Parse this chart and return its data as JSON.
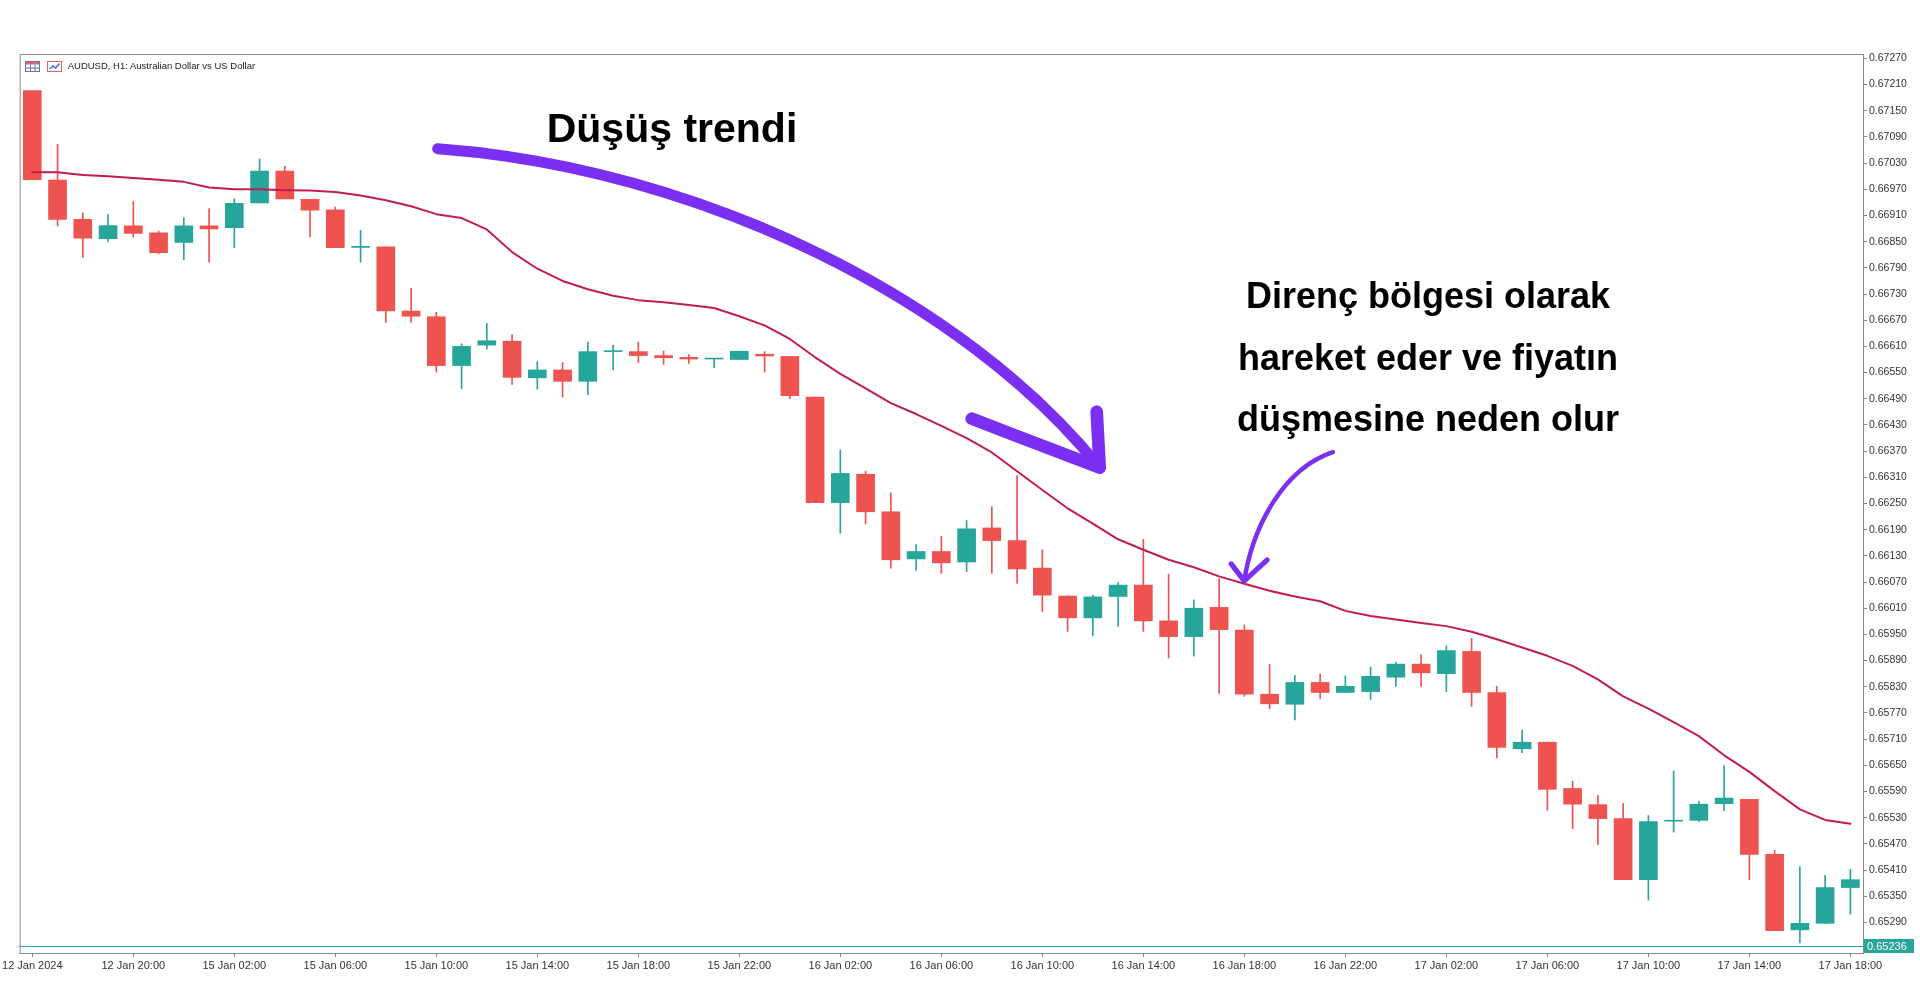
{
  "chart_data": {
    "type": "candlestick",
    "title": "AUDUSD, H1: Australian Dollar vs US Dollar",
    "categories": [
      "12 Jan 2024",
      null,
      null,
      null,
      "12 Jan 20:00",
      null,
      null,
      null,
      "15 Jan 02:00",
      null,
      null,
      null,
      "15 Jan 06:00",
      null,
      null,
      null,
      "15 Jan 10:00",
      null,
      null,
      null,
      "15 Jan 14:00",
      null,
      null,
      null,
      "15 Jan 18:00",
      null,
      null,
      null,
      "15 Jan 22:00",
      null,
      null,
      null,
      "16 Jan 02:00",
      null,
      null,
      null,
      "16 Jan 06:00",
      null,
      null,
      null,
      "16 Jan 10:00",
      null,
      null,
      null,
      "16 Jan 14:00",
      null,
      null,
      null,
      "16 Jan 18:00",
      null,
      null,
      null,
      "16 Jan 22:00",
      null,
      null,
      null,
      "17 Jan 02:00",
      null,
      null,
      null,
      "17 Jan 06:00",
      null,
      null,
      null,
      "17 Jan 10:00",
      null,
      null,
      null,
      "17 Jan 14:00",
      null,
      null,
      null,
      "17 Jan 18:00"
    ],
    "ohlc": [
      [
        0.67196,
        0.67196,
        0.66992,
        0.66992
      ],
      [
        0.66991,
        0.67073,
        0.66886,
        0.66901
      ],
      [
        0.66901,
        0.66916,
        0.66814,
        0.66858
      ],
      [
        0.66857,
        0.66912,
        0.6685,
        0.66887
      ],
      [
        0.66886,
        0.66942,
        0.6686,
        0.66869
      ],
      [
        0.6687,
        0.66874,
        0.66822,
        0.66825
      ],
      [
        0.66848,
        0.66905,
        0.66809,
        0.66886
      ],
      [
        0.66886,
        0.66926,
        0.66803,
        0.66879
      ],
      [
        0.66882,
        0.66948,
        0.66836,
        0.66938
      ],
      [
        0.66939,
        0.67039,
        0.66939,
        0.67012
      ],
      [
        0.67012,
        0.67023,
        0.66948,
        0.66948
      ],
      [
        0.66947,
        0.66947,
        0.66861,
        0.66922
      ],
      [
        0.66923,
        0.66929,
        0.66836,
        0.66836
      ],
      [
        0.66837,
        0.66876,
        0.66803,
        0.66837
      ],
      [
        0.66838,
        0.66838,
        0.66665,
        0.66691
      ],
      [
        0.66691,
        0.66743,
        0.66665,
        0.66679
      ],
      [
        0.66678,
        0.66688,
        0.66551,
        0.66566
      ],
      [
        0.66566,
        0.66616,
        0.66513,
        0.6661
      ],
      [
        0.66613,
        0.66663,
        0.66604,
        0.66623
      ],
      [
        0.66622,
        0.66637,
        0.66523,
        0.66539
      ],
      [
        0.66538,
        0.66575,
        0.66512,
        0.66556
      ],
      [
        0.66556,
        0.66573,
        0.66494,
        0.6653
      ],
      [
        0.6653,
        0.6662,
        0.66499,
        0.66598
      ],
      [
        0.66598,
        0.66613,
        0.66556,
        0.66598
      ],
      [
        0.66598,
        0.6662,
        0.66573,
        0.66589
      ],
      [
        0.66589,
        0.66599,
        0.66569,
        0.66584
      ],
      [
        0.66585,
        0.66591,
        0.66571,
        0.66581
      ],
      [
        0.66581,
        0.66581,
        0.66561,
        0.66581
      ],
      [
        0.6658,
        0.66599,
        0.6658,
        0.66599
      ],
      [
        0.66592,
        0.66598,
        0.66551,
        0.66588
      ],
      [
        0.66587,
        0.66587,
        0.6649,
        0.66497
      ],
      [
        0.66494,
        0.66494,
        0.66252,
        0.66252
      ],
      [
        0.66252,
        0.66373,
        0.66182,
        0.66319
      ],
      [
        0.66317,
        0.66324,
        0.66203,
        0.66231
      ],
      [
        0.66231,
        0.66274,
        0.66102,
        0.66121
      ],
      [
        0.66123,
        0.66156,
        0.66097,
        0.6614
      ],
      [
        0.6614,
        0.66175,
        0.6609,
        0.66114
      ],
      [
        0.66116,
        0.66211,
        0.66094,
        0.66192
      ],
      [
        0.66194,
        0.66243,
        0.6609,
        0.66165
      ],
      [
        0.66165,
        0.66314,
        0.66067,
        0.661
      ],
      [
        0.66102,
        0.66144,
        0.66002,
        0.6604
      ],
      [
        0.66038,
        0.66038,
        0.65957,
        0.65988
      ],
      [
        0.65988,
        0.6604,
        0.65947,
        0.66036
      ],
      [
        0.66037,
        0.66069,
        0.65969,
        0.66063
      ],
      [
        0.66063,
        0.66168,
        0.65957,
        0.65981
      ],
      [
        0.65981,
        0.66088,
        0.65896,
        0.65945
      ],
      [
        0.65945,
        0.66029,
        0.659,
        0.6601
      ],
      [
        0.66012,
        0.66078,
        0.65815,
        0.65961
      ],
      [
        0.6596,
        0.65972,
        0.65808,
        0.65813
      ],
      [
        0.65813,
        0.65881,
        0.6578,
        0.65791
      ],
      [
        0.6579,
        0.65856,
        0.65754,
        0.6584
      ],
      [
        0.6584,
        0.65859,
        0.65803,
        0.65817
      ],
      [
        0.65817,
        0.65855,
        0.65817,
        0.65831
      ],
      [
        0.65819,
        0.65875,
        0.65801,
        0.65854
      ],
      [
        0.65852,
        0.65886,
        0.65831,
        0.65882
      ],
      [
        0.65882,
        0.65903,
        0.65831,
        0.65862
      ],
      [
        0.6586,
        0.65924,
        0.65819,
        0.65913
      ],
      [
        0.65911,
        0.65941,
        0.65785,
        0.65817
      ],
      [
        0.65817,
        0.65831,
        0.65667,
        0.65691
      ],
      [
        0.65688,
        0.65731,
        0.65679,
        0.65703
      ],
      [
        0.65703,
        0.65703,
        0.65547,
        0.65595
      ],
      [
        0.65597,
        0.65614,
        0.65505,
        0.65561
      ],
      [
        0.6556,
        0.65581,
        0.65469,
        0.65528
      ],
      [
        0.65528,
        0.65563,
        0.65388,
        0.65388
      ],
      [
        0.65388,
        0.65535,
        0.65341,
        0.65521
      ],
      [
        0.65522,
        0.65637,
        0.65497,
        0.65522
      ],
      [
        0.65524,
        0.65567,
        0.65521,
        0.65561
      ],
      [
        0.65562,
        0.65649,
        0.65546,
        0.65575
      ],
      [
        0.65572,
        0.65572,
        0.65388,
        0.65446
      ],
      [
        0.65446,
        0.65455,
        0.65271,
        0.65271
      ],
      [
        0.65273,
        0.65418,
        0.65243,
        0.65288
      ],
      [
        0.65288,
        0.65398,
        0.65288,
        0.6537
      ],
      [
        0.6537,
        0.65412,
        0.65309,
        0.65388
      ]
    ],
    "colors": [
      "#ef5350",
      "#ef5350",
      "#ef5350",
      "#26a69a",
      "#ef5350",
      "#ef5350",
      "#26a69a",
      "#ef5350",
      "#26a69a",
      "#26a69a",
      "#ef5350",
      "#ef5350",
      "#ef5350",
      "#26a69a",
      "#ef5350",
      "#ef5350",
      "#ef5350",
      "#26a69a",
      "#26a69a",
      "#ef5350",
      "#26a69a",
      "#ef5350",
      "#26a69a",
      "#26a69a",
      "#ef5350",
      "#ef5350",
      "#ef5350",
      "#26a69a",
      "#26a69a",
      "#ef5350",
      "#ef5350",
      "#ef5350",
      "#26a69a",
      "#ef5350",
      "#ef5350",
      "#26a69a",
      "#ef5350",
      "#26a69a",
      "#ef5350",
      "#ef5350",
      "#ef5350",
      "#ef5350",
      "#26a69a",
      "#26a69a",
      "#ef5350",
      "#ef5350",
      "#26a69a",
      "#ef5350",
      "#ef5350",
      "#ef5350",
      "#26a69a",
      "#ef5350",
      "#26a69a",
      "#26a69a",
      "#26a69a",
      "#ef5350",
      "#26a69a",
      "#ef5350",
      "#ef5350",
      "#26a69a",
      "#ef5350",
      "#ef5350",
      "#ef5350",
      "#ef5350",
      "#26a69a",
      "#26a69a",
      "#26a69a",
      "#26a69a",
      "#ef5350",
      "#ef5350",
      "#26a69a",
      "#26a69a",
      "#26a69a"
    ],
    "series": [
      {
        "type": "line",
        "color": "#c21d4e",
        "values": [
          0.67009,
          0.67009,
          0.67003,
          0.67,
          0.66996,
          0.66992,
          0.66987,
          0.66974,
          0.6697,
          0.6697,
          0.66968,
          0.66967,
          0.66964,
          0.66956,
          0.66945,
          0.66931,
          0.66913,
          0.66904,
          0.66878,
          0.66826,
          0.66788,
          0.6676,
          0.66741,
          0.66726,
          0.66716,
          0.66711,
          0.66705,
          0.66698,
          0.66679,
          0.66658,
          0.66627,
          0.66585,
          0.66547,
          0.66514,
          0.6648,
          0.66455,
          0.66428,
          0.664,
          0.66367,
          0.66324,
          0.66281,
          0.66239,
          0.66204,
          0.66168,
          0.66144,
          0.66121,
          0.66104,
          0.66083,
          0.66066,
          0.6605,
          0.66037,
          0.66026,
          0.66004,
          0.65992,
          0.65984,
          0.65976,
          0.65969,
          0.65956,
          0.65939,
          0.6592,
          0.65901,
          0.65878,
          0.65847,
          0.65808,
          0.6578,
          0.65749,
          0.65717,
          0.65673,
          0.65635,
          0.65591,
          0.65549,
          0.65525,
          0.65516
        ]
      }
    ],
    "ylim": [
      0.6522,
      0.6728
    ],
    "yticks": [
      {
        "value": 0.6727,
        "label": "0.67270"
      },
      {
        "value": 0.6721,
        "label": "0.67210"
      },
      {
        "value": 0.6715,
        "label": "0.67150"
      },
      {
        "value": 0.6709,
        "label": "0.67090"
      },
      {
        "value": 0.6703,
        "label": "0.67030"
      },
      {
        "value": 0.6697,
        "label": "0.66970"
      },
      {
        "value": 0.6691,
        "label": "0.66910"
      },
      {
        "value": 0.6685,
        "label": "0.66850"
      },
      {
        "value": 0.6679,
        "label": "0.66790"
      },
      {
        "value": 0.6673,
        "label": "0.66730"
      },
      {
        "value": 0.6667,
        "label": "0.66670"
      },
      {
        "value": 0.6661,
        "label": "0.66610"
      },
      {
        "value": 0.6655,
        "label": "0.66550"
      },
      {
        "value": 0.6649,
        "label": "0.66490"
      },
      {
        "value": 0.6643,
        "label": "0.66430"
      },
      {
        "value": 0.6637,
        "label": "0.66370"
      },
      {
        "value": 0.6631,
        "label": "0.66310"
      },
      {
        "value": 0.6625,
        "label": "0.66250"
      },
      {
        "value": 0.6619,
        "label": "0.66190"
      },
      {
        "value": 0.6613,
        "label": "0.66130"
      },
      {
        "value": 0.6607,
        "label": "0.66070"
      },
      {
        "value": 0.6601,
        "label": "0.66010"
      },
      {
        "value": 0.6595,
        "label": "0.65950"
      },
      {
        "value": 0.6589,
        "label": "0.65890"
      },
      {
        "value": 0.6583,
        "label": "0.65830"
      },
      {
        "value": 0.6577,
        "label": "0.65770"
      },
      {
        "value": 0.6571,
        "label": "0.65710"
      },
      {
        "value": 0.6565,
        "label": "0.65650"
      },
      {
        "value": 0.6559,
        "label": "0.65590"
      },
      {
        "value": 0.6553,
        "label": "0.65530"
      },
      {
        "value": 0.6547,
        "label": "0.65470"
      },
      {
        "value": 0.6541,
        "label": "0.65410"
      },
      {
        "value": 0.6535,
        "label": "0.65350"
      },
      {
        "value": 0.6529,
        "label": "0.65290"
      }
    ],
    "ref_lines": [
      {
        "axis": "y",
        "value": 0.65236,
        "label": "0.65236",
        "color": "#26a69a"
      }
    ],
    "annotations": [
      "Düşüş trendi",
      {
        "text": "Direnç bölgesi olarak hareket eder ve fiyatın düşmesine neden olur",
        "x": "16 Jan 18:00",
        "y": 0.66066
      }
    ]
  }
}
